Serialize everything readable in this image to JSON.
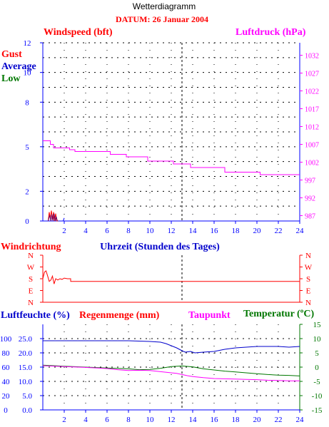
{
  "header": {
    "title": "Wetterdiagramm",
    "date_line": "DATUM: 26 Januar 2004"
  },
  "colors": {
    "red": "#ff0000",
    "blue": "#0000cc",
    "green": "#007700",
    "magenta": "#ff00ff",
    "axis": "#0000ff",
    "grid": "#000000",
    "purple": "#660066"
  },
  "chart_data": [
    {
      "id": "wind_pressure",
      "type": "line",
      "labels": {
        "windspeed": "Windspeed (bft)",
        "pressure": "Luftdruck (hPa)",
        "gust": "Gust",
        "average": "Average",
        "low": "Low"
      },
      "x_ticks": [
        "2",
        "4",
        "6",
        "8",
        "10",
        "12",
        "14",
        "16",
        "18",
        "20",
        "22",
        "24"
      ],
      "xlim": [
        0,
        24
      ],
      "y_left_ticks": [
        "0",
        "2",
        "5",
        "8",
        "10",
        "12"
      ],
      "ylim_left": [
        0,
        12
      ],
      "y_right_ticks": [
        "987",
        "992",
        "997",
        "1002",
        "1007",
        "1012",
        "1017",
        "1022",
        "1027",
        "1032"
      ],
      "ylim_right": [
        985.5,
        1035.5
      ],
      "series": [
        {
          "name": "Luftdruck (hPa)",
          "axis": "right",
          "x": [
            0,
            0.7,
            0.7,
            1.0,
            1.0,
            2.5,
            2.5,
            3.0,
            3.0,
            6.3,
            6.3,
            7.8,
            7.8,
            9.8,
            9.8,
            12.2,
            12.2,
            13.8,
            13.8,
            17.0,
            17.0,
            20.3,
            20.3,
            24
          ],
          "y": [
            1008,
            1008,
            1007,
            1007,
            1006,
            1006,
            1005.5,
            1005.5,
            1005,
            1005,
            1004.2,
            1004.2,
            1003.5,
            1003.5,
            1002.3,
            1002.3,
            1001.5,
            1001.5,
            1000.5,
            1000.5,
            999.2,
            999.2,
            998.5,
            998.5
          ]
        },
        {
          "name": "Gust",
          "axis": "left",
          "x": [
            0.5,
            0.6,
            0.7,
            0.8,
            0.9,
            1.0,
            1.1,
            1.2,
            1.3,
            1.4
          ],
          "y": [
            0.0,
            0.6,
            0.2,
            0.7,
            0.1,
            0.6,
            0.0,
            0.5,
            0.0,
            0.0
          ]
        },
        {
          "name": "Average",
          "axis": "left",
          "x": [
            0.5,
            0.65,
            0.75,
            0.85,
            0.95,
            1.05,
            1.15,
            1.25,
            1.35,
            1.45
          ],
          "y": [
            0.0,
            0.4,
            0.0,
            0.45,
            0.0,
            0.5,
            0.0,
            0.3,
            0.0,
            0.0
          ]
        },
        {
          "name": "Low",
          "axis": "left",
          "x": [
            1.9,
            2.0
          ],
          "y": [
            0.0,
            0.2
          ]
        }
      ]
    },
    {
      "id": "wind_direction",
      "type": "line",
      "labels": {
        "title": "Windrichtung",
        "xlabel": "Uhrzeit (Stunden des Tages)"
      },
      "y_ticks": [
        "N",
        "W",
        "S",
        "E",
        "N"
      ],
      "xlim": [
        0,
        24
      ],
      "series": [
        {
          "name": "Windrichtung",
          "x": [
            0,
            0.15,
            0.3,
            0.45,
            0.6,
            0.75,
            0.9,
            1.05,
            1.2,
            1.4,
            1.6,
            1.8,
            2.0,
            2.3,
            2.6,
            2.6,
            24
          ],
          "y": [
            180,
            230,
            240,
            200,
            160,
            170,
            200,
            140,
            180,
            170,
            180,
            175,
            185,
            180,
            180,
            160,
            160
          ]
        }
      ]
    },
    {
      "id": "humidity_temperature",
      "type": "line",
      "labels": {
        "humidity": "Luftfeuchte (%)",
        "rain": "Regenmenge (mm)",
        "dewpoint": "Taupunkt",
        "temperature": "Temperatur (ºC)"
      },
      "y_humidity_ticks": [
        "0",
        "20",
        "40",
        "60",
        "80",
        "100"
      ],
      "y_rain_ticks": [
        "0.0",
        "5.0",
        "10.0",
        "15.0",
        "20.0",
        "25.0"
      ],
      "y_temp_ticks": [
        "-15",
        "-10",
        "-5",
        "0",
        "5",
        "10",
        "15"
      ],
      "x_ticks": [
        "2",
        "4",
        "6",
        "8",
        "10",
        "12",
        "14",
        "16",
        "18",
        "20",
        "22",
        "24"
      ],
      "xlim": [
        0,
        24
      ],
      "humidity_lim": [
        0,
        120
      ],
      "temp_lim": [
        -15,
        15
      ],
      "series": [
        {
          "name": "Luftfeuchte (%)",
          "axis": "humidity",
          "x": [
            0,
            2,
            4,
            6,
            8,
            10,
            11,
            11.5,
            12,
            12.5,
            13,
            13.3,
            13.8,
            14.2,
            15,
            16,
            17,
            18,
            19,
            20,
            21,
            22,
            23,
            24
          ],
          "y": [
            97,
            97,
            97,
            97,
            97,
            96,
            95,
            93,
            90,
            87,
            83,
            81,
            82,
            80,
            81,
            82,
            85,
            87,
            88,
            89,
            89,
            89,
            88,
            89
          ]
        },
        {
          "name": "Temperatur (ºC)",
          "axis": "temp",
          "x": [
            0,
            2,
            4,
            6,
            8,
            9,
            10,
            11,
            12,
            13,
            14,
            15,
            16,
            17,
            18,
            19,
            20,
            21,
            22,
            23,
            24
          ],
          "y": [
            0.7,
            0.3,
            0.0,
            -0.3,
            -0.6,
            -0.9,
            -0.8,
            -0.4,
            0.2,
            0.4,
            0.1,
            -0.6,
            -1.0,
            -1.4,
            -1.7,
            -2.0,
            -2.3,
            -2.6,
            -2.8,
            -2.9,
            -3.1
          ]
        },
        {
          "name": "Taupunkt",
          "axis": "temp",
          "x": [
            0,
            2,
            4,
            6,
            7,
            8,
            9,
            10,
            11,
            12,
            12.5,
            13,
            13.5,
            14,
            15,
            16,
            17,
            18,
            19,
            20,
            21,
            22,
            23,
            24
          ],
          "y": [
            0.5,
            0.2,
            -0.1,
            -0.5,
            -0.9,
            -1.2,
            -1.1,
            -1.2,
            -1.6,
            -2.0,
            -2.2,
            -2.6,
            -3.0,
            -3.3,
            -3.7,
            -4.0,
            -4.1,
            -4.2,
            -4.3,
            -4.4,
            -4.6,
            -4.7,
            -4.8,
            -4.8
          ]
        }
      ]
    }
  ]
}
